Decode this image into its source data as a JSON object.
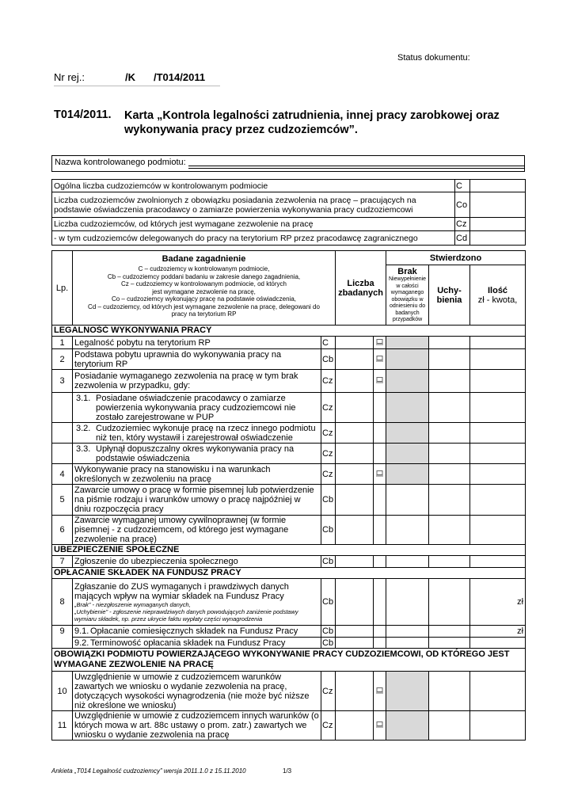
{
  "header": {
    "status": "Status dokumentu:",
    "nr_label": "Nr rej.:",
    "nr_k": "/K",
    "nr_suffix": "/T014/2011",
    "title_code": "T014/2011.",
    "title_lines": [
      "Karta „Kontrola legalności zatrudnienia, innej pracy zarobkowej oraz",
      "wykonywania pracy przez cudzoziemców”."
    ]
  },
  "entity": {
    "label": "Nazwa kontrolowanego podmiotu:"
  },
  "summary": {
    "rows": [
      {
        "text": "Ogólna liczba cudzoziemców w kontrolowanym podmiocie",
        "code": "C"
      },
      {
        "text": "Liczba cudzoziemców zwolnionych z obowiązku posiadania zezwolenia na pracę – pracujących na podstawie oświadczenia pracodawcy o zamiarze powierzenia wykonywania pracy cudzoziemcowi",
        "code": "Co"
      },
      {
        "text": "Liczba cudzoziemców, od których jest wymagane zezwolenie na pracę",
        "code": "Cz"
      },
      {
        "text": "- w tym cudzoziemców delegowanych do pracy na terytorium RP przez pracodawcę zagranicznego",
        "code": "Cd"
      }
    ]
  },
  "table": {
    "headers": {
      "lp": "Lp.",
      "topic": "Badane zagadnienie",
      "legend": [
        "C – cudzoziemcy w kontrolowanym podmiocie,",
        "Cb – cudzoziemcy poddani badaniu w zakresie danego zagadnienia,",
        "Cz – cudzoziemcy w kontrolowanym podmiocie, od których",
        "jest wymagane zezwolenie na pracę,",
        "Co – cudzoziemcy wykonujący pracę na podstawie oświadczenia,",
        "Cd – cudzoziemcy, od których jest wymagane zezwolenie na pracę, delegowani do",
        "pracy na terytorium RP"
      ],
      "count": "Liczba zbadanych",
      "found": "Stwierdzono",
      "missing": "Brak",
      "missing_note": "Niewypełnienie w całości wymaganego obowiązku w odniesieniu do badanych przypadków",
      "irregular": "Uchy-bienia",
      "amount": "Ilość",
      "amount_note": "zł  - kwota,"
    },
    "rows": [
      {
        "kind": "section",
        "text": "LEGALNOŚĆ WYKONYWANIA PRACY"
      },
      {
        "lp": "1",
        "text": "Legalność pobytu na terytorium RP",
        "code": "C",
        "icon": true
      },
      {
        "lp": "2",
        "text": "Podstawa pobytu uprawnia do wykonywania pracy na terytorium RP",
        "code": "Cb",
        "icon": true
      },
      {
        "lp": "3",
        "text": "Posiadanie wymaganego zezwolenia na pracę w tym brak zezwolenia w przypadku, gdy:",
        "code": "Cz",
        "icon": true
      },
      {
        "no": "3.1.",
        "text": "Posiadane oświadczenie pracodawcy o zamiarze powierzenia wykonywania pracy cudzoziemcowi nie zostało zarejestrowane w PUP",
        "code": "Cz"
      },
      {
        "no": "3.2.",
        "text": "Cudzoziemiec wykonuje pracę na rzecz innego podmiotu niż ten, który wystawił i zarejestrował oświadczenie",
        "code": "Cz"
      },
      {
        "no": "3.3.",
        "text": "Upłynął dopuszczalny okres wykonywania pracy na podstawie oświadczenia",
        "code": "Cz"
      },
      {
        "lp": "4",
        "text": "Wykonywanie pracy na stanowisku i na warunkach określonych w zezwoleniu na pracę",
        "code": "Cz",
        "icon": true
      },
      {
        "lp": "5",
        "text": "Zawarcie umowy o pracę w formie pisemnej lub potwierdzenie na piśmie rodzaju i warunków umowy o pracę najpóźniej w dniu rozpoczęcia pracy",
        "code": "Cb"
      },
      {
        "lp": "6",
        "text": "Zawarcie wymaganej umowy cywilnoprawnej (w formie pisemnej - z cudzoziemcem, od którego jest wymagane zezwolenie na pracę)",
        "code": "Cb"
      },
      {
        "kind": "section",
        "text": "UBEZPIECZENIE SPOŁECZNE"
      },
      {
        "lp": "7",
        "text": "Zgłoszenie do ubezpieczenia społecznego",
        "code": "Cb"
      },
      {
        "kind": "section",
        "text": "OPŁACANIE SKŁADEK NA FUNDUSZ PRACY"
      },
      {
        "lp": "8",
        "text": "Zgłaszanie do ZUS wymaganych i prawdziwych danych mających wpływ na wymiar składek na Fundusz Pracy",
        "note": [
          "„Brak” - niezgłoszenie wymaganych danych,",
          "„Uchybienie” -  zgłoszenie nieprawdziwych danych powodujących zaniżenie podstawy wymiaru składek, np. przez ukrycie faktu wypłaty części wynagrodzenia"
        ],
        "code": "Cb",
        "amount": "zł"
      },
      {
        "lp": "9",
        "no": "9.1.",
        "text": "Opłacanie comiesięcznych składek na Fundusz Pracy",
        "code": "Cb",
        "amount": "zł"
      },
      {
        "no": "9.2.",
        "text": "Terminowość opłacania składek na Fundusz Pracy",
        "code": "Cb"
      },
      {
        "kind": "section",
        "text": "OBOWIĄZKI PODMIOTU POWIERZAJĄCEGO WYKONYWANIE PRACY CUDZOZIEMCOWI, OD KTÓREGO JEST WYMAGANE ZEZWOLENIE NA PRACĘ"
      },
      {
        "lp": "10",
        "text": "Uwzględnienie w umowie z cudzoziemcem warunków zawartych we wniosku o wydanie zezwolenia na pracę, dotyczących wysokości wynagrodzenia (nie może być niższe niż określone we wniosku)",
        "code": "Cz",
        "icon": true
      },
      {
        "lp": "11",
        "text": "Uwzględnienie w umowie z cudzoziemcem innych warunków (o których mowa w art. 88c ustawy o prom. zatr.) zawartych we wniosku o wydanie zezwolenia na pracę",
        "code": "Cz",
        "icon": true
      }
    ]
  },
  "footer": {
    "survey": "Ankieta „T014 Legalność cudzoziemcy” wersja  2011.1.0 z 15.11.2010",
    "page": "1/3"
  }
}
